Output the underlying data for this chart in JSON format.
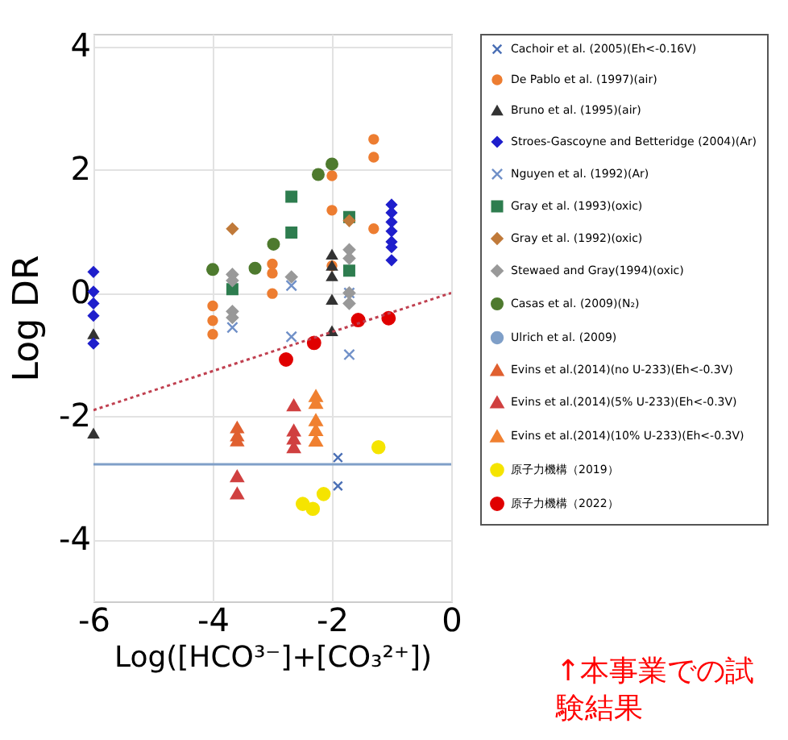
{
  "chart_data": {
    "type": "scatter",
    "xlabel": "Log([HCO³⁻]+[CO₃²⁺])",
    "ylabel": "Log DR",
    "xlim": [
      -6,
      0
    ],
    "xticks": [
      -6,
      -4,
      -2,
      0
    ],
    "ylim": [
      -5,
      4.2
    ],
    "yticks": [
      -4,
      -2,
      0,
      2,
      4
    ],
    "grid": true,
    "legend": "right",
    "annotations": [
      "↑本事業での試験結果"
    ],
    "series": [
      {
        "name": "Cachoir et al. (2005)(Eh<-0.16V)",
        "color": "#4a6fb5",
        "marker": "cross",
        "x": [
          -1.9,
          -1.9
        ],
        "values": [
          -2.67,
          -3.13
        ]
      },
      {
        "name": "De Pablo et al. (1997)(air)",
        "color": "#ed7d31",
        "marker": "circle",
        "x": [
          -4,
          -4,
          -4,
          -3,
          -3,
          -3,
          -2,
          -2,
          -2,
          -1.3,
          -1.3,
          -1.3
        ],
        "values": [
          -0.21,
          -0.45,
          -0.67,
          0.47,
          0.32,
          -0.01,
          1.9,
          1.34,
          0.44,
          2.49,
          2.2,
          1.04
        ]
      },
      {
        "name": "Bruno et al. (1995)(air)",
        "color": "#333333",
        "marker": "triangle",
        "x": [
          -6,
          -6,
          -2,
          -2,
          -2,
          -2,
          -2
        ],
        "values": [
          -0.67,
          -2.28,
          0.62,
          0.44,
          0.27,
          -0.11,
          -0.62
        ]
      },
      {
        "name": "Stroes-Gascoyne and Betteridge (2004)(Ar)",
        "color": "#1f1fcc",
        "marker": "diamond",
        "x": [
          -6,
          -6,
          -6,
          -6,
          -6,
          -1,
          -1,
          -1,
          -1,
          -1,
          -1,
          -1
        ],
        "values": [
          0.34,
          0.02,
          -0.17,
          -0.37,
          -0.82,
          1.43,
          1.3,
          1.15,
          1.0,
          0.83,
          0.74,
          0.53
        ]
      },
      {
        "name": "Nguyen et al. (1992)(Ar)",
        "color": "#7090c8",
        "marker": "cross",
        "x": [
          -3.67,
          -2.68,
          -2.68,
          -1.71,
          -1.71
        ],
        "values": [
          -0.56,
          -0.71,
          0.12,
          -1.0,
          0.0
        ]
      },
      {
        "name": "Gray et al. (1993)(oxic)",
        "color": "#2e7d4f",
        "marker": "square",
        "x": [
          -3.67,
          -2.68,
          -2.68,
          -1.71,
          -1.71
        ],
        "values": [
          0.06,
          1.56,
          0.98,
          1.23,
          0.36
        ]
      },
      {
        "name": "Gray et al. (1992)(oxic)",
        "color": "#c07a3a",
        "marker": "diamond",
        "x": [
          -3.67,
          -1.71
        ],
        "values": [
          1.04,
          1.17
        ]
      },
      {
        "name": "Stewaed and Gray(1994)(oxic)",
        "color": "#999999",
        "marker": "diamond",
        "x": [
          -3.67,
          -3.67,
          -3.67,
          -3.67,
          -2.68,
          -1.71,
          -1.71,
          -1.71,
          -1.71
        ],
        "values": [
          0.3,
          0.2,
          -0.3,
          -0.4,
          0.26,
          0.7,
          0.56,
          0.0,
          -0.17
        ]
      },
      {
        "name": "Casas et al. (2009)(N₂)",
        "color": "#4e7a2e",
        "marker": "circle",
        "x": [
          -4,
          -3.29,
          -2.98,
          -2.23,
          -2
        ],
        "values": [
          0.38,
          0.4,
          0.79,
          1.92,
          2.09
        ]
      },
      {
        "name": "Ulrich et al. (2009)",
        "type": "line",
        "color": "#7f9fc8",
        "x": [
          -6,
          0
        ],
        "values": [
          -2.78,
          -2.78
        ]
      },
      {
        "name": "Evins et al.(2014)(no U-233)(Eh<-0.3V)",
        "color": "#e06030",
        "marker": "triangle",
        "x": [
          -3.59,
          -3.59,
          -3.59
        ],
        "values": [
          -2.18,
          -2.31,
          -2.39
        ]
      },
      {
        "name": "Evins et al.(2014)(5% U-233)(Eh<-0.3V)",
        "color": "#d04040",
        "marker": "triangle",
        "x": [
          -3.59,
          -3.59,
          -2.64,
          -2.64,
          -2.64,
          -2.64
        ],
        "values": [
          -2.97,
          -3.25,
          -1.82,
          -2.23,
          -2.36,
          -2.5
        ]
      },
      {
        "name": "Evins et al.(2014)(10% U-233)(Eh<-0.3V)",
        "color": "#f08030",
        "marker": "triangle",
        "x": [
          -2.27,
          -2.27,
          -2.27,
          -2.27,
          -2.27
        ],
        "values": [
          -1.67,
          -1.78,
          -2.06,
          -2.22,
          -2.39
        ]
      },
      {
        "name": "原子力機構（2019）",
        "color": "#f5e400",
        "marker": "circle",
        "x": [
          -1.22,
          -2.49,
          -2.32,
          -2.14
        ],
        "values": [
          -2.5,
          -3.42,
          -3.5,
          -3.26
        ]
      },
      {
        "name": "原子力機構（2022）",
        "color": "#e00000",
        "marker": "circle",
        "x": [
          -1.56,
          -1.05,
          -2.3,
          -2.77
        ],
        "values": [
          -0.44,
          -0.41,
          -0.81,
          -1.08
        ]
      },
      {
        "type": "line",
        "color": "#c04050",
        "line_style": "dotted",
        "marker": "none",
        "x": [
          -6,
          0
        ],
        "values": [
          -1.9,
          0
        ]
      }
    ]
  }
}
